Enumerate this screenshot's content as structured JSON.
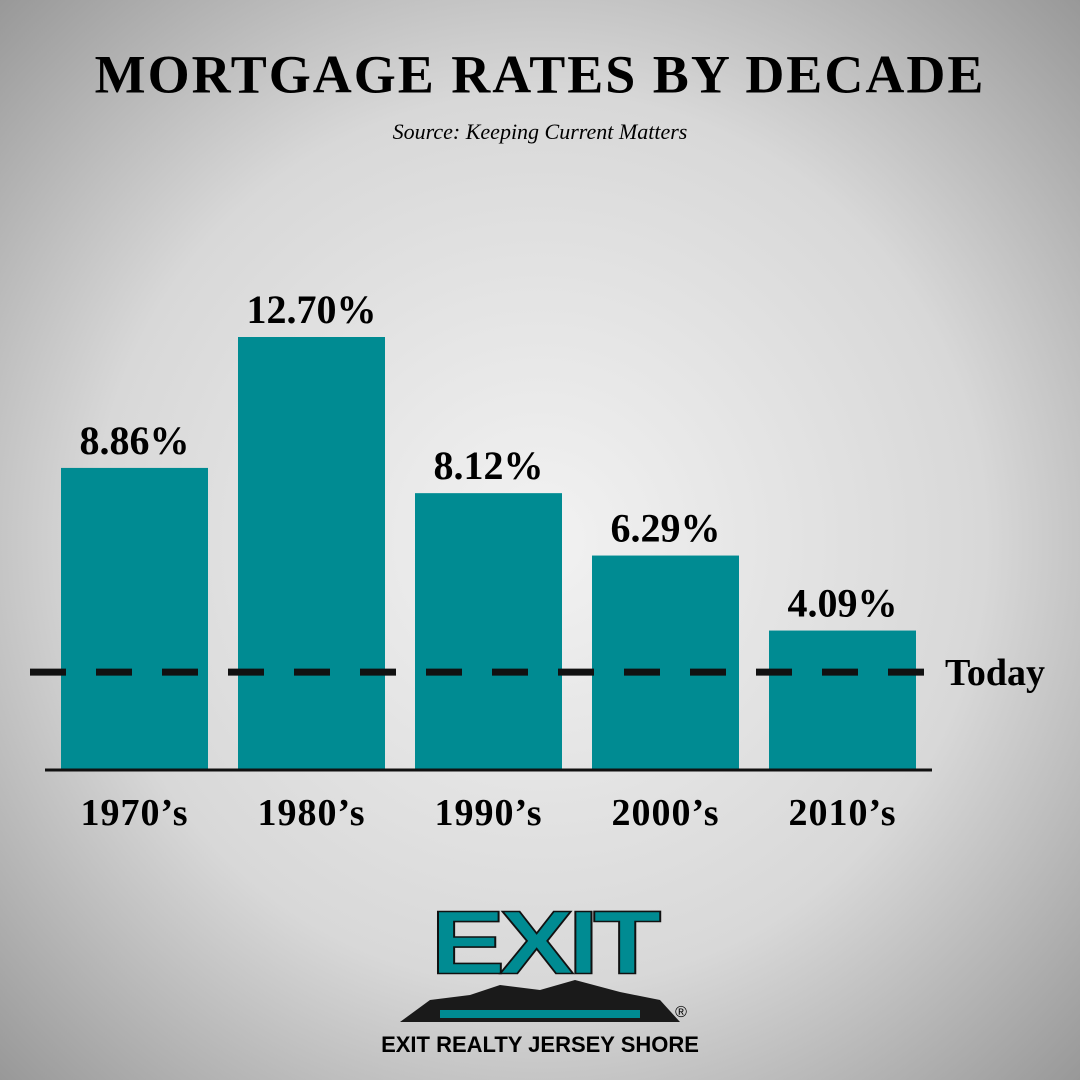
{
  "chart_data": {
    "type": "bar",
    "title": "MORTGAGE RATES BY DECADE",
    "subtitle": "Source: Keeping Current Matters",
    "categories": [
      "1970’s",
      "1980’s",
      "1990’s",
      "2000’s",
      "2010’s"
    ],
    "values": [
      8.86,
      12.7,
      8.12,
      6.29,
      4.09
    ],
    "value_labels": [
      "8.86%",
      "12.70%",
      "8.12%",
      "6.29%",
      "4.09%"
    ],
    "color": "#008b92",
    "reference_line": {
      "value": 2.87,
      "label": "Today"
    }
  },
  "logo": {
    "mark": "EXIT",
    "registered": "®",
    "name": "EXIT REALTY JERSEY SHORE"
  }
}
